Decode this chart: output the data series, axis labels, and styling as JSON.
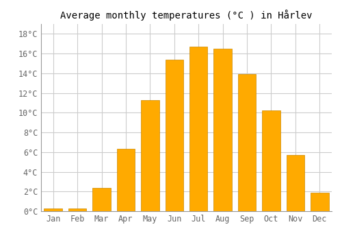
{
  "title": "Average monthly temperatures (°C ) in Hårlev",
  "months": [
    "Jan",
    "Feb",
    "Mar",
    "Apr",
    "May",
    "Jun",
    "Jul",
    "Aug",
    "Sep",
    "Oct",
    "Nov",
    "Dec"
  ],
  "values": [
    0.3,
    0.3,
    2.4,
    6.3,
    11.3,
    15.4,
    16.7,
    16.5,
    13.9,
    10.2,
    5.7,
    1.9
  ],
  "bar_color": "#FFAA00",
  "bar_edge_color": "#CC8800",
  "background_color": "#ffffff",
  "grid_color": "#cccccc",
  "ytick_labels": [
    "0°C",
    "2°C",
    "4°C",
    "6°C",
    "8°C",
    "10°C",
    "12°C",
    "14°C",
    "16°C",
    "18°C"
  ],
  "ytick_values": [
    0,
    2,
    4,
    6,
    8,
    10,
    12,
    14,
    16,
    18
  ],
  "ylim": [
    0,
    19.0
  ],
  "title_fontsize": 10,
  "tick_fontsize": 8.5,
  "bar_width": 0.75
}
